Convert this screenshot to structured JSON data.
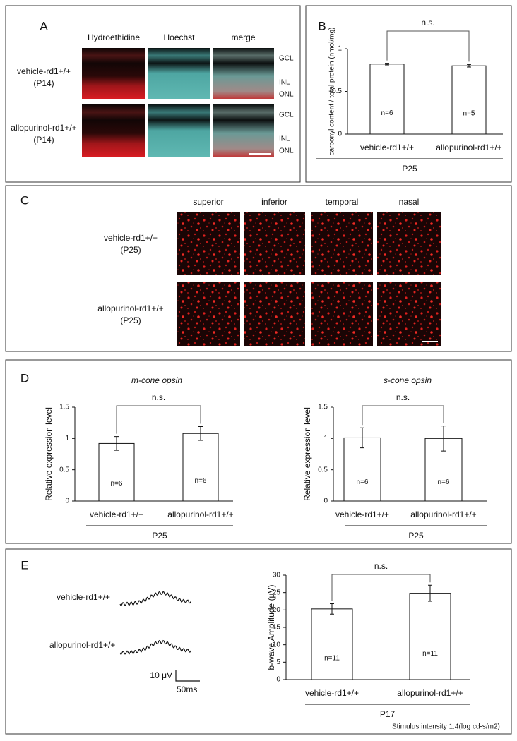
{
  "panel_labels": [
    "A",
    "B",
    "C",
    "D",
    "E"
  ],
  "panel_a": {
    "columns": [
      "Hydroethidine",
      "Hoechst",
      "merge"
    ],
    "rows": [
      {
        "label": "vehicle-rd1+/+",
        "age": "(P14)",
        "layers": [
          "GCL",
          "INL",
          "ONL"
        ]
      },
      {
        "label": "allopurinol-rd1+/+",
        "age": "(P14)",
        "layers": [
          "GCL",
          "INL",
          "ONL"
        ]
      }
    ]
  },
  "panel_c": {
    "columns": [
      "superior",
      "inferior",
      "temporal",
      "nasal"
    ],
    "rows": [
      {
        "label": "vehicle-rd1+/+",
        "age": "(P25)"
      },
      {
        "label": "allopurinol-rd1+/+",
        "age": "(P25)"
      }
    ]
  },
  "panel_e": {
    "traces": [
      "vehicle-rd1+/+",
      "allopurinol-rd1+/+"
    ],
    "scale_amplitude": "10 μV",
    "scale_time": "50ms"
  },
  "chart_data": [
    {
      "type": "bar",
      "ylabel": "carbonyl content / total protein (nmol/mg)",
      "categories": [
        "vehicle-rd1+/+",
        "allopurinol-rd1+/+"
      ],
      "values": [
        0.82,
        0.8
      ],
      "errors": [
        0.01,
        0.015
      ],
      "n_labels": [
        "n=6",
        "n=5"
      ],
      "significance": "n.s.",
      "group_label": "P25",
      "color": "#ffffff",
      "ylim": [
        0,
        1
      ],
      "yticks": [
        0,
        0.5,
        1
      ]
    },
    {
      "type": "bar",
      "title": "m-cone opsin",
      "ylabel": "Relative expression level",
      "categories": [
        "vehicle-rd1+/+",
        "allopurinol-rd1+/+"
      ],
      "values": [
        0.92,
        1.08
      ],
      "errors": [
        0.11,
        0.11
      ],
      "n_labels": [
        "n=6",
        "n=6"
      ],
      "significance": "n.s.",
      "group_label": "P25",
      "color": "#ffffff",
      "ylim": [
        0,
        1.5
      ],
      "yticks": [
        0,
        0.5,
        1,
        1.5
      ]
    },
    {
      "type": "bar",
      "title": "s-cone opsin",
      "ylabel": "Relative expression level",
      "categories": [
        "vehicle-rd1+/+",
        "allopurinol-rd1+/+"
      ],
      "values": [
        1.01,
        1.0
      ],
      "errors": [
        0.16,
        0.2
      ],
      "n_labels": [
        "n=6",
        "n=6"
      ],
      "significance": "n.s.",
      "group_label": "P25",
      "color": "#ffffff",
      "ylim": [
        0,
        1.5
      ],
      "yticks": [
        0,
        0.5,
        1,
        1.5
      ]
    },
    {
      "type": "bar",
      "ylabel": "b-wave Amplitude (μV)",
      "categories": [
        "vehicle-rd1+/+",
        "allopurinol-rd1+/+"
      ],
      "values": [
        20.3,
        24.8
      ],
      "errors": [
        1.5,
        2.3
      ],
      "n_labels": [
        "n=11",
        "n=11"
      ],
      "significance": "n.s.",
      "group_label": "P17",
      "footnote": "Stimulus intensity 1.4(log cd-s/m2)",
      "color": "#ffffff",
      "ylim": [
        0,
        30
      ],
      "yticks": [
        0,
        5,
        10,
        15,
        20,
        25,
        30
      ]
    }
  ]
}
